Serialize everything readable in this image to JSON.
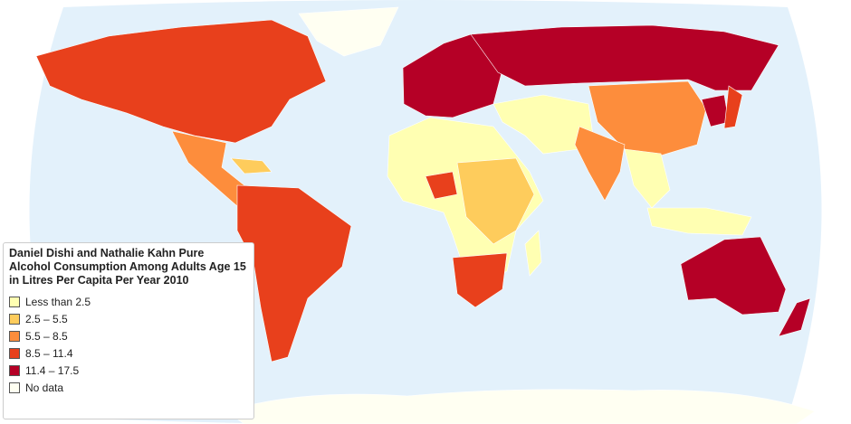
{
  "legend": {
    "title": "Daniel Dishi and Nathalie Kahn Pure Alcohol Consumption Among Adults Age 15 in Litres Per Capita Per Year 2010",
    "items": [
      {
        "label": "Less than 2.5",
        "color": "#ffffb2"
      },
      {
        "label": "2.5 – 5.5",
        "color": "#fecc5c"
      },
      {
        "label": "5.5 – 8.5",
        "color": "#fd8d3c"
      },
      {
        "label": "8.5 – 11.4",
        "color": "#e8401c"
      },
      {
        "label": "11.4 – 17.5",
        "color": "#b50026"
      },
      {
        "label": "No data",
        "color": "#fffff2"
      }
    ]
  }
}
